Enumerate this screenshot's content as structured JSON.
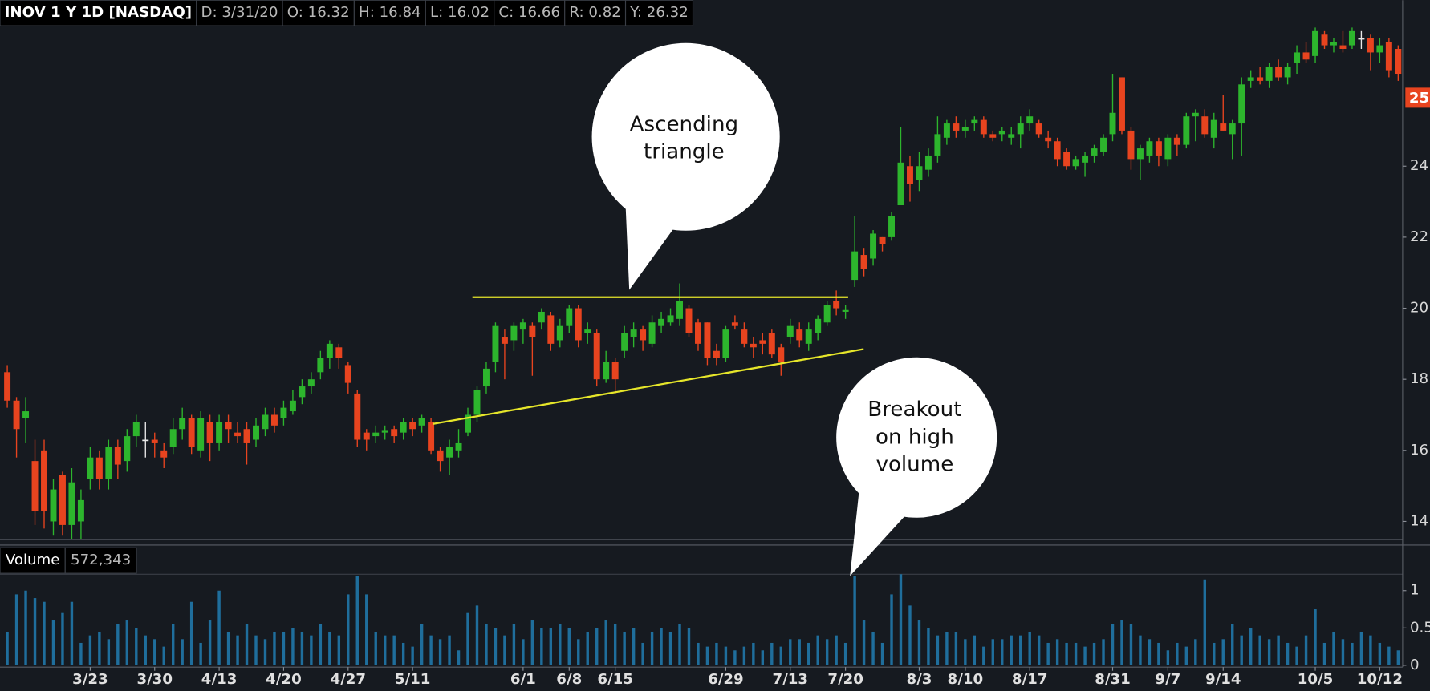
{
  "chart_data": {
    "type": "candlestick",
    "header": [
      "INOV 1 Y 1D [NASDAQ]",
      "D: 3/31/20",
      "O: 16.32",
      "H: 16.84",
      "L: 16.02",
      "C: 16.66",
      "R: 0.82",
      "Y: 26.32"
    ],
    "volume_label": "Volume",
    "volume_value": "572,343",
    "last_price_marker": "25",
    "annotations": [
      {
        "lines": [
          "Ascending",
          "triangle"
        ]
      },
      {
        "lines": [
          "Breakout",
          "on high",
          "volume"
        ]
      }
    ],
    "up_color": "#2db52d",
    "down_color": "#e8441f",
    "doji_color": "#e8e8e8",
    "volume_color": "#1f6e9c",
    "ylim": [
      13.49,
      28.67
    ],
    "yticks": [
      14,
      16,
      18,
      20,
      22,
      24
    ],
    "volume_ylim": [
      0,
      1.22
    ],
    "volume_yticks": [
      0,
      0.5,
      1
    ],
    "categories": [
      null,
      null,
      null,
      null,
      null,
      null,
      null,
      null,
      null,
      "3/23",
      null,
      null,
      null,
      null,
      null,
      null,
      "3/30",
      null,
      null,
      null,
      null,
      null,
      null,
      "4/13",
      null,
      null,
      null,
      null,
      null,
      null,
      "4/20",
      null,
      null,
      null,
      null,
      null,
      null,
      "4/27",
      null,
      null,
      null,
      null,
      null,
      null,
      "5/11",
      null,
      null,
      null,
      null,
      null,
      null,
      null,
      null,
      null,
      null,
      null,
      "6/1",
      null,
      null,
      null,
      null,
      "6/8",
      null,
      null,
      null,
      null,
      "6/15",
      null,
      null,
      null,
      null,
      null,
      null,
      null,
      null,
      null,
      null,
      null,
      "6/29",
      null,
      null,
      null,
      null,
      null,
      null,
      "7/13",
      null,
      null,
      null,
      null,
      null,
      "7/20",
      null,
      null,
      null,
      null,
      null,
      null,
      null,
      "8/3",
      null,
      null,
      null,
      null,
      "8/10",
      null,
      null,
      null,
      null,
      null,
      null,
      "8/17",
      null,
      null,
      null,
      null,
      null,
      null,
      null,
      null,
      "8/31",
      null,
      null,
      null,
      null,
      null,
      "9/7",
      null,
      null,
      null,
      null,
      null,
      "9/14",
      null,
      null,
      null,
      null,
      null,
      null,
      null,
      null,
      null,
      "10/5",
      null,
      null,
      null,
      null,
      null,
      null,
      "10/12",
      null,
      null
    ],
    "candles": [
      [
        18.2,
        18.4,
        17.2,
        17.4
      ],
      [
        17.4,
        17.5,
        15.8,
        16.6
      ],
      [
        16.9,
        17.5,
        16.2,
        17.1
      ],
      [
        15.7,
        16.3,
        13.9,
        14.3
      ],
      [
        16.0,
        16.3,
        13.8,
        14.3
      ],
      [
        14.0,
        15.2,
        13.6,
        14.9
      ],
      [
        15.3,
        15.4,
        13.6,
        13.9
      ],
      [
        13.9,
        15.5,
        13.5,
        15.1
      ],
      [
        14.0,
        14.9,
        13.5,
        14.6
      ],
      [
        15.2,
        16.1,
        14.9,
        15.8
      ],
      [
        15.8,
        16.0,
        14.9,
        15.2
      ],
      [
        15.2,
        16.3,
        14.9,
        16.1
      ],
      [
        16.1,
        16.3,
        15.2,
        15.6
      ],
      [
        15.7,
        16.6,
        15.4,
        16.4
      ],
      [
        16.4,
        17.0,
        16.1,
        16.8
      ],
      [
        16.3,
        16.8,
        15.8,
        16.3
      ],
      [
        16.3,
        16.5,
        15.8,
        16.2
      ],
      [
        16.0,
        16.2,
        15.5,
        15.8
      ],
      [
        16.1,
        16.9,
        15.9,
        16.6
      ],
      [
        16.6,
        17.2,
        16.3,
        16.9
      ],
      [
        16.9,
        17.0,
        15.9,
        16.1
      ],
      [
        16.0,
        17.1,
        15.8,
        16.9
      ],
      [
        16.8,
        17.0,
        15.7,
        16.2
      ],
      [
        16.2,
        17.0,
        16.0,
        16.8
      ],
      [
        16.8,
        17.0,
        16.2,
        16.6
      ],
      [
        16.5,
        16.8,
        16.2,
        16.4
      ],
      [
        16.6,
        16.8,
        15.6,
        16.2
      ],
      [
        16.3,
        16.9,
        16.1,
        16.7
      ],
      [
        16.6,
        17.2,
        16.4,
        17.0
      ],
      [
        17.0,
        17.2,
        16.5,
        16.7
      ],
      [
        16.9,
        17.4,
        16.7,
        17.2
      ],
      [
        17.1,
        17.7,
        17.0,
        17.4
      ],
      [
        17.5,
        18.0,
        17.3,
        17.8
      ],
      [
        17.8,
        18.2,
        17.6,
        18.0
      ],
      [
        18.2,
        18.8,
        18.0,
        18.6
      ],
      [
        18.6,
        19.1,
        18.3,
        19.0
      ],
      [
        18.9,
        19.0,
        18.3,
        18.6
      ],
      [
        18.4,
        18.5,
        17.6,
        17.9
      ],
      [
        17.6,
        17.7,
        16.1,
        16.3
      ],
      [
        16.5,
        16.6,
        16.0,
        16.3
      ],
      [
        16.4,
        16.7,
        16.2,
        16.5
      ],
      [
        16.5,
        16.7,
        16.3,
        16.55
      ],
      [
        16.6,
        16.7,
        16.2,
        16.4
      ],
      [
        16.5,
        16.9,
        16.3,
        16.8
      ],
      [
        16.8,
        16.9,
        16.4,
        16.6
      ],
      [
        16.7,
        17.0,
        16.5,
        16.9
      ],
      [
        16.8,
        16.9,
        15.9,
        16.0
      ],
      [
        16.0,
        16.1,
        15.4,
        15.7
      ],
      [
        15.8,
        16.3,
        15.3,
        16.1
      ],
      [
        16.0,
        16.6,
        15.8,
        16.2
      ],
      [
        16.5,
        17.2,
        16.4,
        17.0
      ],
      [
        17.0,
        17.8,
        16.8,
        17.7
      ],
      [
        17.8,
        18.5,
        17.6,
        18.3
      ],
      [
        18.5,
        19.6,
        18.2,
        19.5
      ],
      [
        19.2,
        19.4,
        18.0,
        19.0
      ],
      [
        19.1,
        19.6,
        18.8,
        19.5
      ],
      [
        19.4,
        19.7,
        19.0,
        19.6
      ],
      [
        19.5,
        19.6,
        18.1,
        19.2
      ],
      [
        19.6,
        20.0,
        19.4,
        19.9
      ],
      [
        19.8,
        19.9,
        18.8,
        19.0
      ],
      [
        19.1,
        19.7,
        18.9,
        19.5
      ],
      [
        19.5,
        20.1,
        19.3,
        20.0
      ],
      [
        20.0,
        20.1,
        18.9,
        19.1
      ],
      [
        19.3,
        19.6,
        19.0,
        19.4
      ],
      [
        19.3,
        19.4,
        17.8,
        18.0
      ],
      [
        18.0,
        18.8,
        17.9,
        18.5
      ],
      [
        18.5,
        18.6,
        17.6,
        18.0
      ],
      [
        18.8,
        19.5,
        18.6,
        19.3
      ],
      [
        19.2,
        19.6,
        18.9,
        19.4
      ],
      [
        19.4,
        19.5,
        18.8,
        19.1
      ],
      [
        19.0,
        19.8,
        18.9,
        19.6
      ],
      [
        19.5,
        19.9,
        19.3,
        19.7
      ],
      [
        19.6,
        20.0,
        19.5,
        19.8
      ],
      [
        19.7,
        20.7,
        19.5,
        20.2
      ],
      [
        20.0,
        20.1,
        19.2,
        19.3
      ],
      [
        19.6,
        19.7,
        18.8,
        19.0
      ],
      [
        19.6,
        19.6,
        18.4,
        18.6
      ],
      [
        18.8,
        19.0,
        18.4,
        18.6
      ],
      [
        18.6,
        19.5,
        18.5,
        19.4
      ],
      [
        19.6,
        19.8,
        19.4,
        19.5
      ],
      [
        19.4,
        19.6,
        18.9,
        19.0
      ],
      [
        19.0,
        19.2,
        18.6,
        18.9
      ],
      [
        19.1,
        19.3,
        18.7,
        19.0
      ],
      [
        19.3,
        19.4,
        18.6,
        18.7
      ],
      [
        18.9,
        19.0,
        18.1,
        18.5
      ],
      [
        19.2,
        19.7,
        19.0,
        19.5
      ],
      [
        19.4,
        19.6,
        18.9,
        19.1
      ],
      [
        19.0,
        19.6,
        18.8,
        19.4
      ],
      [
        19.3,
        19.8,
        19.1,
        19.7
      ],
      [
        19.6,
        20.2,
        19.5,
        20.1
      ],
      [
        20.2,
        20.5,
        19.8,
        20.0
      ],
      [
        19.9,
        20.1,
        19.7,
        19.95
      ],
      [
        20.8,
        22.6,
        20.6,
        21.6
      ],
      [
        21.5,
        21.7,
        20.9,
        21.1
      ],
      [
        21.4,
        22.2,
        21.2,
        22.1
      ],
      [
        22.0,
        22.0,
        21.6,
        21.8
      ],
      [
        22.0,
        22.7,
        21.9,
        22.6
      ],
      [
        22.9,
        25.1,
        22.9,
        24.1
      ],
      [
        24.0,
        24.3,
        23.0,
        23.5
      ],
      [
        23.6,
        24.4,
        23.3,
        24.0
      ],
      [
        23.9,
        24.5,
        23.7,
        24.3
      ],
      [
        24.3,
        25.4,
        24.1,
        24.9
      ],
      [
        24.8,
        25.3,
        24.6,
        25.2
      ],
      [
        25.2,
        25.4,
        24.8,
        25.0
      ],
      [
        25.0,
        25.3,
        24.8,
        25.1
      ],
      [
        25.2,
        25.4,
        25.0,
        25.3
      ],
      [
        25.3,
        25.4,
        24.8,
        24.9
      ],
      [
        24.9,
        25.0,
        24.7,
        24.8
      ],
      [
        24.9,
        25.1,
        24.7,
        25.0
      ],
      [
        24.8,
        25.1,
        24.6,
        24.9
      ],
      [
        24.9,
        25.4,
        24.5,
        25.2
      ],
      [
        25.2,
        25.6,
        25.0,
        25.4
      ],
      [
        25.2,
        25.3,
        24.8,
        24.9
      ],
      [
        24.8,
        25.0,
        24.5,
        24.7
      ],
      [
        24.7,
        24.8,
        24.0,
        24.2
      ],
      [
        24.4,
        24.5,
        23.9,
        24.0
      ],
      [
        24.0,
        24.3,
        23.9,
        24.2
      ],
      [
        24.1,
        24.4,
        23.7,
        24.3
      ],
      [
        24.3,
        24.6,
        24.1,
        24.5
      ],
      [
        24.4,
        24.9,
        24.3,
        24.8
      ],
      [
        24.9,
        26.6,
        24.7,
        25.5
      ],
      [
        26.5,
        26.5,
        24.9,
        25.0
      ],
      [
        25.0,
        25.1,
        23.9,
        24.2
      ],
      [
        24.2,
        24.6,
        23.6,
        24.5
      ],
      [
        24.3,
        24.8,
        24.1,
        24.7
      ],
      [
        24.7,
        24.8,
        24.0,
        24.3
      ],
      [
        24.2,
        24.9,
        24.0,
        24.8
      ],
      [
        24.8,
        24.9,
        24.3,
        24.6
      ],
      [
        24.6,
        25.5,
        24.5,
        25.4
      ],
      [
        25.4,
        25.6,
        24.7,
        25.5
      ],
      [
        25.4,
        25.6,
        24.8,
        24.9
      ],
      [
        24.8,
        25.5,
        24.5,
        25.3
      ],
      [
        25.2,
        26.0,
        25.0,
        25.0
      ],
      [
        24.9,
        25.3,
        24.2,
        25.2
      ],
      [
        25.2,
        26.5,
        24.3,
        26.3
      ],
      [
        26.4,
        26.7,
        26.2,
        26.5
      ],
      [
        26.5,
        26.8,
        26.3,
        26.4
      ],
      [
        26.4,
        26.9,
        26.2,
        26.8
      ],
      [
        26.8,
        27.0,
        26.4,
        26.5
      ],
      [
        26.5,
        26.9,
        26.3,
        26.8
      ],
      [
        26.9,
        27.4,
        26.6,
        27.2
      ],
      [
        27.2,
        27.5,
        26.9,
        27.0
      ],
      [
        27.1,
        27.9,
        26.9,
        27.8
      ],
      [
        27.7,
        27.8,
        27.3,
        27.4
      ],
      [
        27.4,
        27.6,
        27.2,
        27.5
      ],
      [
        27.4,
        27.8,
        27.2,
        27.3
      ],
      [
        27.4,
        27.9,
        27.3,
        27.8
      ],
      [
        27.6,
        27.8,
        27.3,
        27.6
      ],
      [
        27.6,
        27.7,
        26.7,
        27.2
      ],
      [
        27.2,
        27.6,
        26.9,
        27.4
      ],
      [
        27.5,
        27.6,
        26.5,
        26.7
      ],
      [
        27.3,
        27.4,
        26.4,
        26.6
      ]
    ],
    "volume": [
      0.45,
      0.95,
      1.0,
      0.9,
      0.85,
      0.6,
      0.7,
      0.85,
      0.3,
      0.4,
      0.45,
      0.35,
      0.55,
      0.6,
      0.5,
      0.4,
      0.35,
      0.25,
      0.55,
      0.35,
      0.85,
      0.3,
      0.6,
      1.0,
      0.45,
      0.4,
      0.55,
      0.4,
      0.35,
      0.45,
      0.45,
      0.5,
      0.45,
      0.4,
      0.55,
      0.45,
      0.4,
      0.95,
      1.2,
      0.95,
      0.45,
      0.4,
      0.4,
      0.3,
      0.25,
      0.55,
      0.4,
      0.35,
      0.4,
      0.2,
      0.7,
      0.8,
      0.55,
      0.5,
      0.4,
      0.55,
      0.35,
      0.6,
      0.5,
      0.5,
      0.55,
      0.5,
      0.35,
      0.45,
      0.5,
      0.6,
      0.55,
      0.45,
      0.5,
      0.3,
      0.45,
      0.5,
      0.45,
      0.55,
      0.5,
      0.3,
      0.25,
      0.3,
      0.25,
      0.2,
      0.25,
      0.3,
      0.2,
      0.3,
      0.25,
      0.35,
      0.35,
      0.3,
      0.4,
      0.35,
      0.4,
      0.3,
      1.2,
      0.6,
      0.45,
      0.3,
      0.95,
      1.22,
      0.8,
      0.6,
      0.5,
      0.4,
      0.45,
      0.45,
      0.35,
      0.4,
      0.25,
      0.35,
      0.35,
      0.4,
      0.4,
      0.45,
      0.4,
      0.3,
      0.35,
      0.3,
      0.3,
      0.25,
      0.3,
      0.35,
      0.55,
      0.6,
      0.55,
      0.4,
      0.35,
      0.3,
      0.2,
      0.3,
      0.25,
      0.35,
      1.15,
      0.3,
      0.35,
      0.55,
      0.4,
      0.5,
      0.4,
      0.35,
      0.4,
      0.3,
      0.25,
      0.4,
      0.75,
      0.3,
      0.45,
      0.35,
      0.3,
      0.45,
      0.4,
      0.3,
      0.25,
      0.2
    ]
  }
}
